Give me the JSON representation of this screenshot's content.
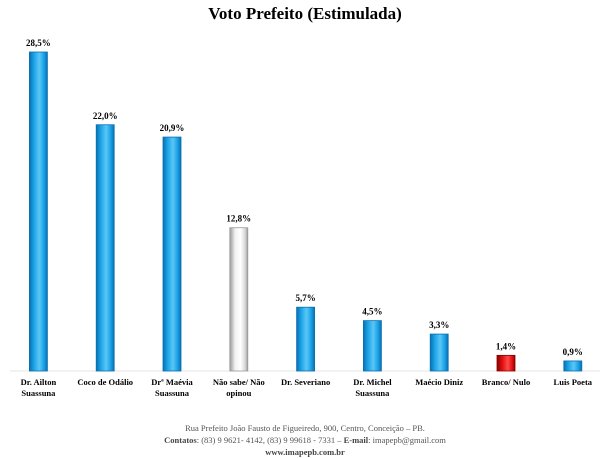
{
  "chart_data": {
    "type": "bar",
    "title": "Voto Prefeito (Estimulada)",
    "categories": [
      [
        "Dr. Ailton",
        "Suassuna"
      ],
      [
        "Coco de Odálio"
      ],
      [
        "Drª Maévia",
        "Suassuna"
      ],
      [
        "Não sabe/ Não",
        "opinou"
      ],
      [
        "Dr. Severiano"
      ],
      [
        "Dr. Michel",
        "Suassuna"
      ],
      [
        "Maécio Diniz"
      ],
      [
        "Branco/ Nulo"
      ],
      [
        "Luis Poeta"
      ]
    ],
    "values": [
      28.5,
      22.0,
      20.9,
      12.8,
      5.7,
      4.5,
      3.3,
      1.4,
      0.9
    ],
    "value_labels": [
      "28,5%",
      "22,0%",
      "20,9%",
      "12,8%",
      "5,7%",
      "4,5%",
      "3,3%",
      "1,4%",
      "0,9%"
    ],
    "bar_styles": [
      "blue",
      "blue",
      "blue",
      "white",
      "blue",
      "blue",
      "blue",
      "red",
      "blue"
    ],
    "colors": {
      "blue": "#1aa3e8",
      "blue_dark": "#0a6fb0",
      "white": "#f2f2f2",
      "white_dark": "#9a9a9a",
      "red": "#e01010",
      "red_dark": "#8a0000"
    },
    "xlabel": "",
    "ylabel": "",
    "ylim": [
      0,
      30
    ],
    "grid": false
  },
  "footer": {
    "address": "Rua Prefeito João Fausto de Figueiredo, 900, Centro, Conceição – PB.",
    "contacts_label": "Contatos",
    "contacts_value": ": (83) 9 9621- 4142, (83) 9 99618 - 7331 – ",
    "email_label": "E-mail",
    "email_value": ": imapepb@gmail.com",
    "website": "www.imapepb.com.br"
  }
}
